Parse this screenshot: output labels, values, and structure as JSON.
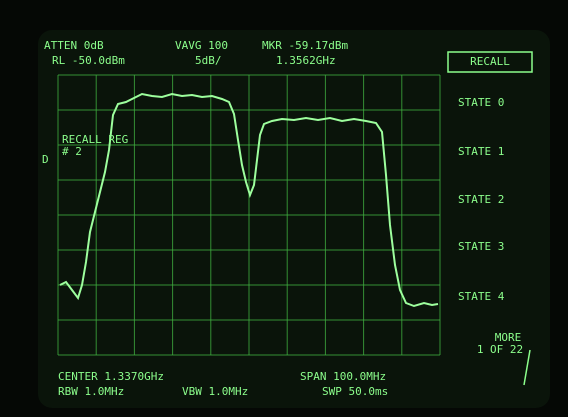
{
  "header": {
    "atten": "ATTEN 0dB",
    "vavg": "VAVG 100",
    "marker": "MKR -59.17dBm",
    "ref_level": "RL -50.0dBm",
    "scale": "5dB/",
    "marker_freq": "1.3562GHz"
  },
  "annotations": {
    "recall_reg": "RECALL REG",
    "reg_number": "# 2",
    "detector": "D"
  },
  "softkeys": {
    "title": "RECALL",
    "keys": [
      "STATE 0",
      "STATE 1",
      "STATE 2",
      "STATE 3",
      "STATE 4"
    ],
    "more": "MORE",
    "page": "1 OF 22"
  },
  "footer": {
    "center": "CENTER 1.3370GHz",
    "span": "SPAN 100.0MHz",
    "rbw": "RBW 1.0MHz",
    "vbw": "VBW 1.0MHz",
    "swp": "SWP 50.0ms"
  }
}
